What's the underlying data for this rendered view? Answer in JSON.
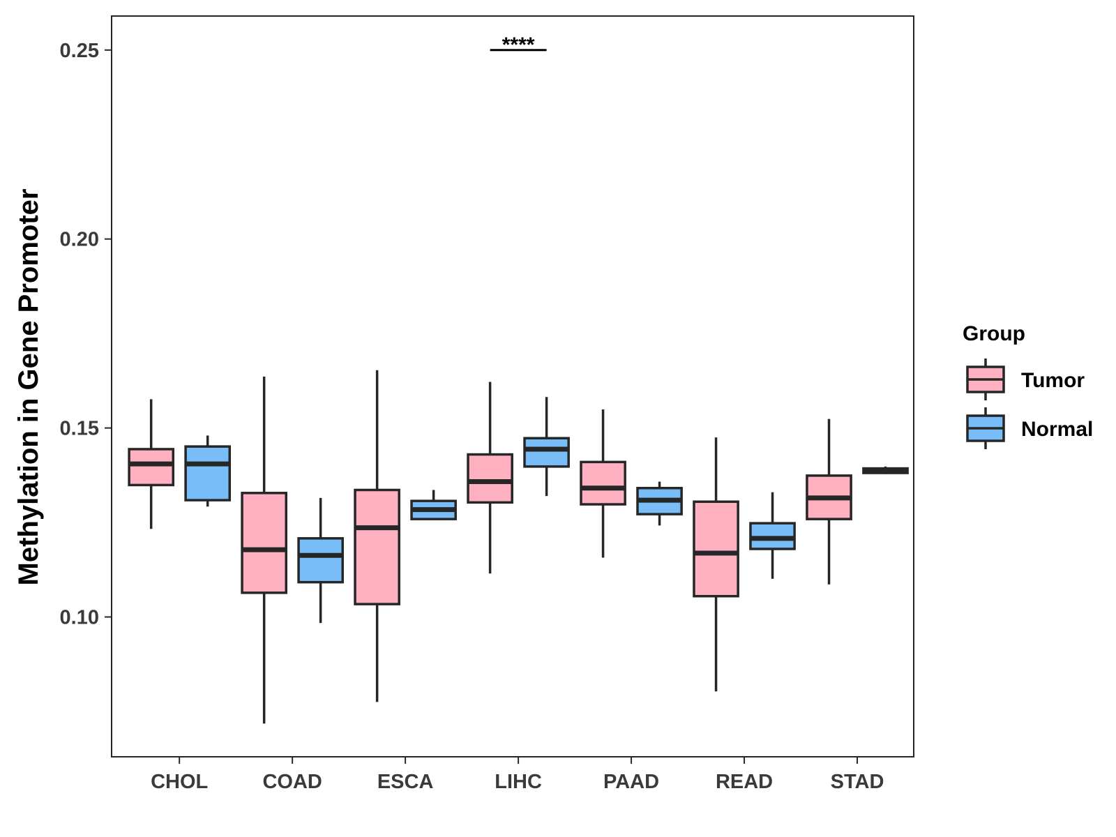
{
  "chart_data": {
    "type": "boxplot",
    "title": "",
    "xlabel": "",
    "ylabel": "Methylation in Gene Promoter",
    "ylim": [
      0.063,
      0.259
    ],
    "yticks": [
      0.1,
      0.15,
      0.2,
      0.25
    ],
    "ytick_labels": [
      "0.10",
      "0.15",
      "0.20",
      "0.25"
    ],
    "categories": [
      "CHOL",
      "COAD",
      "ESCA",
      "LIHC",
      "PAAD",
      "READ",
      "STAD"
    ],
    "grid": false,
    "legend": {
      "title": "Group",
      "position": "right",
      "entries": [
        "Tumor",
        "Normal"
      ]
    },
    "colors": {
      "Tumor": "#FFB0C1",
      "Normal": "#79BDF8",
      "outline": "#262626"
    },
    "series": [
      {
        "name": "Tumor",
        "boxes": [
          {
            "category": "CHOL",
            "whisker_low": 0.1233,
            "q1": 0.1349,
            "median": 0.1405,
            "q3": 0.1444,
            "whisker_high": 0.1576
          },
          {
            "category": "COAD",
            "whisker_low": 0.0718,
            "q1": 0.1064,
            "median": 0.1178,
            "q3": 0.1328,
            "whisker_high": 0.1636
          },
          {
            "category": "ESCA",
            "whisker_low": 0.0775,
            "q1": 0.1034,
            "median": 0.1236,
            "q3": 0.1336,
            "whisker_high": 0.1653
          },
          {
            "category": "LIHC",
            "whisker_low": 0.1115,
            "q1": 0.1303,
            "median": 0.1358,
            "q3": 0.143,
            "whisker_high": 0.1622
          },
          {
            "category": "PAAD",
            "whisker_low": 0.1157,
            "q1": 0.1298,
            "median": 0.1341,
            "q3": 0.141,
            "whisker_high": 0.1549
          },
          {
            "category": "READ",
            "whisker_low": 0.0803,
            "q1": 0.1055,
            "median": 0.1169,
            "q3": 0.1305,
            "whisker_high": 0.1475
          },
          {
            "category": "STAD",
            "whisker_low": 0.1086,
            "q1": 0.1259,
            "median": 0.1315,
            "q3": 0.1374,
            "whisker_high": 0.1524
          }
        ]
      },
      {
        "name": "Normal",
        "boxes": [
          {
            "category": "CHOL",
            "whisker_low": 0.1292,
            "q1": 0.1309,
            "median": 0.1405,
            "q3": 0.1451,
            "whisker_high": 0.148
          },
          {
            "category": "COAD",
            "whisker_low": 0.0984,
            "q1": 0.1092,
            "median": 0.1163,
            "q3": 0.1208,
            "whisker_high": 0.1315
          },
          {
            "category": "ESCA",
            "whisker_low": 0.1259,
            "q1": 0.1259,
            "median": 0.1284,
            "q3": 0.1307,
            "whisker_high": 0.1336
          },
          {
            "category": "LIHC",
            "whisker_low": 0.132,
            "q1": 0.1398,
            "median": 0.1444,
            "q3": 0.1473,
            "whisker_high": 0.1582
          },
          {
            "category": "PAAD",
            "whisker_low": 0.1242,
            "q1": 0.1272,
            "median": 0.1309,
            "q3": 0.1341,
            "whisker_high": 0.1358
          },
          {
            "category": "READ",
            "whisker_low": 0.1101,
            "q1": 0.118,
            "median": 0.1208,
            "q3": 0.1248,
            "whisker_high": 0.133
          },
          {
            "category": "STAD",
            "whisker_low": 0.1378,
            "q1": 0.1381,
            "median": 0.1387,
            "q3": 0.1393,
            "whisker_high": 0.1398
          }
        ]
      }
    ],
    "annotations": [
      {
        "category": "LIHC",
        "text": "****",
        "y": 0.25
      }
    ]
  }
}
